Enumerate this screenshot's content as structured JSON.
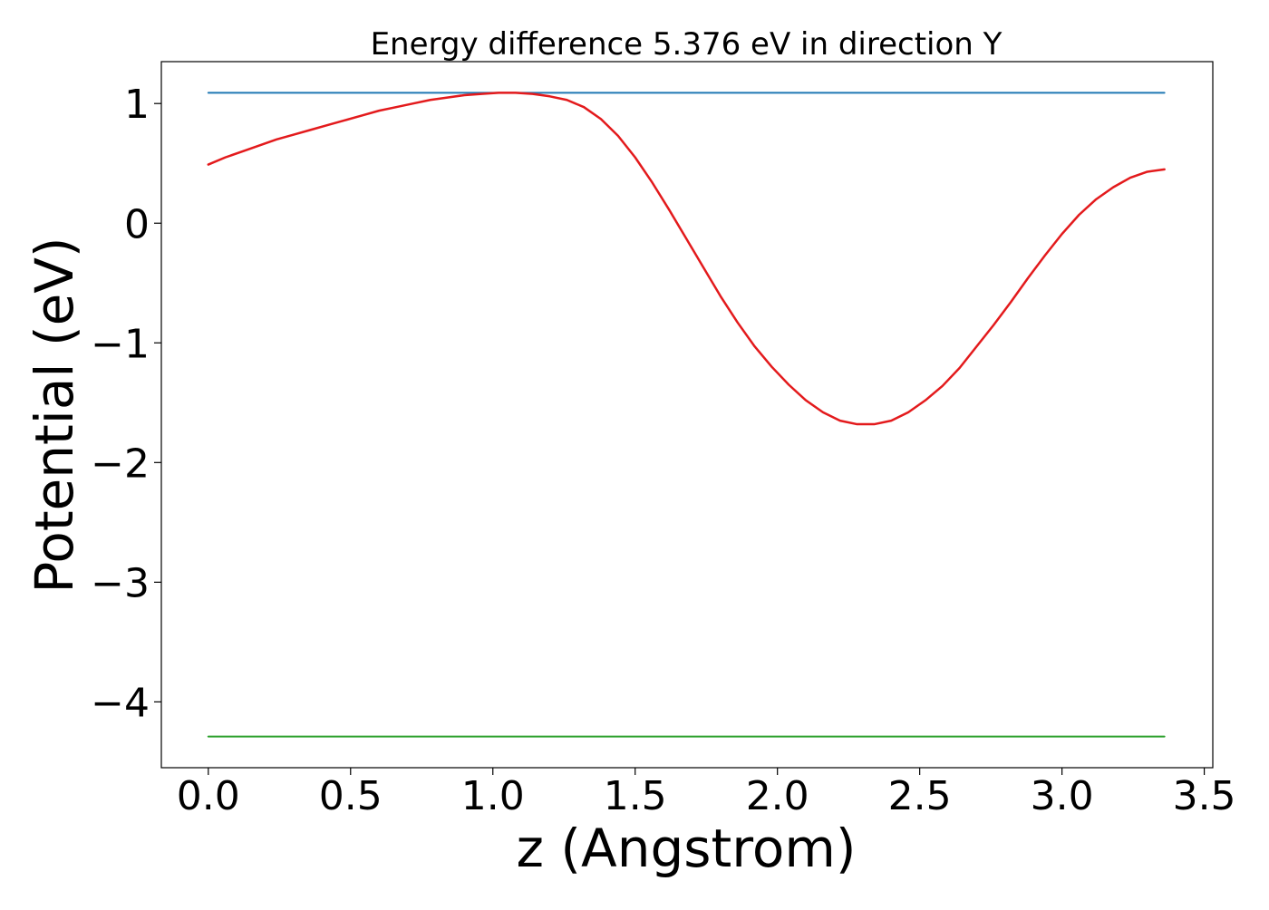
{
  "chart_data": {
    "type": "line",
    "title": "Energy difference 5.376 eV in direction Y",
    "xlabel": "z (Angstrom)",
    "ylabel": "Potential (eV)",
    "xlim": [
      -0.165,
      3.53
    ],
    "ylim": [
      -4.55,
      1.35
    ],
    "xticks": [
      0.0,
      0.5,
      1.0,
      1.5,
      2.0,
      2.5,
      3.0,
      3.5
    ],
    "xtick_labels": [
      "0.0",
      "0.5",
      "1.0",
      "1.5",
      "2.0",
      "2.5",
      "3.0",
      "3.5"
    ],
    "yticks": [
      1,
      0,
      -1,
      -2,
      -3,
      -4
    ],
    "ytick_labels": [
      "1",
      "0",
      "−1",
      "−2",
      "−3",
      "−4"
    ],
    "grid": false,
    "legend": "none",
    "colors": {
      "potential": "#e31a1c",
      "upper_level": "#1f77b4",
      "lower_level": "#2ca02c"
    },
    "series": [
      {
        "color": "#1f77b4",
        "x": [
          0.0,
          3.36
        ],
        "y": [
          1.09,
          1.09
        ]
      },
      {
        "color": "#2ca02c",
        "x": [
          0.0,
          3.36
        ],
        "y": [
          -4.29,
          -4.29
        ]
      },
      {
        "color": "#e31a1c",
        "x": [
          0.0,
          0.06,
          0.12,
          0.18,
          0.24,
          0.3,
          0.36,
          0.42,
          0.48,
          0.54,
          0.6,
          0.66,
          0.72,
          0.78,
          0.84,
          0.9,
          0.96,
          1.02,
          1.08,
          1.14,
          1.2,
          1.26,
          1.32,
          1.38,
          1.44,
          1.5,
          1.56,
          1.62,
          1.68,
          1.74,
          1.8,
          1.86,
          1.92,
          1.98,
          2.04,
          2.1,
          2.16,
          2.22,
          2.28,
          2.34,
          2.4,
          2.46,
          2.52,
          2.58,
          2.64,
          2.7,
          2.76,
          2.82,
          2.88,
          2.94,
          3.0,
          3.06,
          3.12,
          3.18,
          3.24,
          3.3,
          3.36
        ],
        "y": [
          0.49,
          0.55,
          0.6,
          0.65,
          0.7,
          0.74,
          0.78,
          0.82,
          0.86,
          0.9,
          0.94,
          0.97,
          1.0,
          1.03,
          1.05,
          1.07,
          1.08,
          1.09,
          1.09,
          1.08,
          1.06,
          1.03,
          0.97,
          0.87,
          0.73,
          0.55,
          0.34,
          0.11,
          -0.13,
          -0.37,
          -0.61,
          -0.83,
          -1.03,
          -1.2,
          -1.35,
          -1.48,
          -1.58,
          -1.65,
          -1.68,
          -1.68,
          -1.65,
          -1.58,
          -1.48,
          -1.36,
          -1.21,
          -1.03,
          -0.85,
          -0.66,
          -0.46,
          -0.27,
          -0.09,
          0.07,
          0.2,
          0.3,
          0.38,
          0.43,
          0.45
        ]
      }
    ]
  }
}
